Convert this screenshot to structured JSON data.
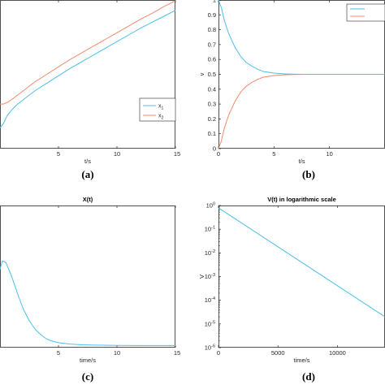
{
  "chart_data": [
    {
      "id": "a",
      "type": "line",
      "caption": "(a)",
      "title": "",
      "xlabel": "t/s",
      "ylabel": "",
      "xlim": [
        0,
        15
      ],
      "ylim": [
        0,
        1
      ],
      "xticks": [
        5,
        10,
        15
      ],
      "yticks": [],
      "legend_location": "right",
      "series": [
        {
          "name": "x1",
          "label_main": "x",
          "label_sub": "1",
          "color": "#4DBEEE",
          "x": [
            0,
            0.3,
            0.6,
            1.0,
            1.5,
            2,
            3,
            4,
            5,
            6,
            7,
            8,
            9,
            10,
            11,
            12,
            13,
            14,
            15
          ],
          "y": [
            0.14,
            0.17,
            0.22,
            0.26,
            0.3,
            0.33,
            0.39,
            0.44,
            0.49,
            0.54,
            0.585,
            0.63,
            0.675,
            0.72,
            0.765,
            0.81,
            0.85,
            0.89,
            0.93
          ]
        },
        {
          "name": "x2",
          "label_main": "x",
          "label_sub": "2",
          "color": "#F08A6A",
          "x": [
            0,
            0.3,
            0.6,
            1.0,
            1.5,
            2,
            3,
            4,
            5,
            6,
            7,
            8,
            9,
            10,
            11,
            12,
            13,
            14,
            15
          ],
          "y": [
            0.3,
            0.3,
            0.31,
            0.33,
            0.36,
            0.39,
            0.45,
            0.5,
            0.55,
            0.6,
            0.645,
            0.69,
            0.735,
            0.78,
            0.825,
            0.87,
            0.91,
            0.955,
            0.995
          ]
        }
      ]
    },
    {
      "id": "b",
      "type": "line",
      "caption": "(b)",
      "title": "",
      "xlabel": "t/s",
      "ylabel": "v",
      "xlim": [
        0,
        15
      ],
      "ylim": [
        0,
        1
      ],
      "xticks": [
        0,
        5,
        10
      ],
      "yticks": [
        0,
        0.1,
        0.2,
        0.3,
        0.4,
        0.5,
        0.6,
        0.7,
        0.8,
        0.9,
        1
      ],
      "legend_location": "top-right",
      "series": [
        {
          "name": "",
          "color": "#4DBEEE",
          "x": [
            0,
            0.25,
            0.5,
            0.75,
            1,
            1.5,
            2,
            2.5,
            3,
            3.5,
            4,
            5,
            6,
            7,
            8,
            10,
            15
          ],
          "y": [
            1,
            0.95,
            0.87,
            0.81,
            0.76,
            0.68,
            0.62,
            0.58,
            0.555,
            0.535,
            0.52,
            0.508,
            0.503,
            0.501,
            0.5,
            0.5,
            0.5
          ]
        },
        {
          "name": "",
          "color": "#F08A6A",
          "x": [
            0,
            0.25,
            0.5,
            0.75,
            1,
            1.5,
            2,
            2.5,
            3,
            3.5,
            4,
            5,
            6,
            7,
            8,
            10,
            15
          ],
          "y": [
            0,
            0.05,
            0.13,
            0.19,
            0.24,
            0.32,
            0.38,
            0.42,
            0.445,
            0.465,
            0.48,
            0.492,
            0.497,
            0.499,
            0.5,
            0.5,
            0.5
          ]
        }
      ]
    },
    {
      "id": "c",
      "type": "line",
      "caption": "(c)",
      "title": "X(t)",
      "xlabel": "time/s",
      "ylabel": "",
      "xlim": [
        0,
        15
      ],
      "ylim": [
        0,
        1
      ],
      "xticks": [
        5,
        10,
        15
      ],
      "yticks": [],
      "series": [
        {
          "name": "",
          "color": "#4DBEEE",
          "x": [
            0,
            0.2,
            0.5,
            1,
            1.5,
            2,
            2.5,
            3,
            3.5,
            4,
            4.5,
            5,
            6,
            7,
            8,
            10,
            12,
            15
          ],
          "y": [
            0.55,
            0.61,
            0.6,
            0.5,
            0.38,
            0.27,
            0.19,
            0.13,
            0.09,
            0.06,
            0.045,
            0.035,
            0.025,
            0.02,
            0.018,
            0.016,
            0.015,
            0.015
          ]
        }
      ]
    },
    {
      "id": "d",
      "type": "line",
      "caption": "(d)",
      "title": "V(t) in logarithmic scale",
      "xlabel": "time/s",
      "ylabel": "V",
      "xscale": "linear",
      "yscale": "log",
      "xlim": [
        0,
        14000
      ],
      "ylim_exp": [
        -6,
        0
      ],
      "xticks": [
        0,
        5000,
        10000
      ],
      "ytick_exponents": [
        0,
        -1,
        -2,
        -3,
        -4,
        -5,
        -6
      ],
      "series": [
        {
          "name": "",
          "color": "#4DBEEE",
          "x": [
            0,
            14000
          ],
          "log10_y": [
            -0.1,
            -4.7
          ]
        }
      ]
    }
  ]
}
